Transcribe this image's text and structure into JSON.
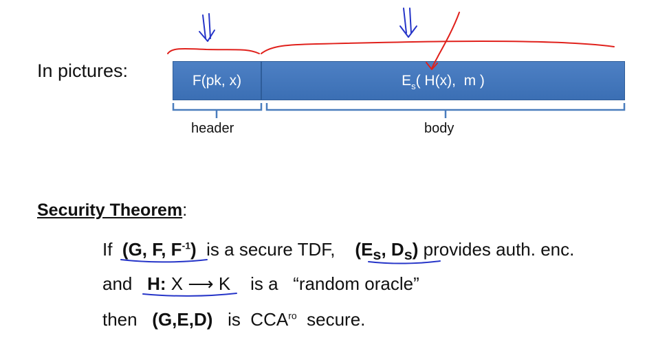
{
  "intro_label": "In pictures:",
  "ciphertext": {
    "header_box": "F(pk, x)",
    "body_box": {
      "prefix": "E",
      "sub": "s",
      "arg1": "( H(x),",
      "arg2": "m )"
    },
    "header_label": "header",
    "body_label": "body"
  },
  "theorem": {
    "title": "Security Theorem",
    "title_suffix": ":",
    "line1": {
      "if": "If",
      "tdf": "(G, F, F",
      "tdf_sup": "-1",
      "tdf_close": ")",
      "tdf_text": "is a secure TDF,",
      "enc_open": "(E",
      "enc_sub1": "s",
      "enc_mid": ", D",
      "enc_sub2": "s",
      "enc_close": ")",
      "enc_text": "provides auth. enc."
    },
    "line2": {
      "and": "and",
      "h": "H:",
      "domain": "X",
      "arrow": "⟶",
      "range": "K",
      "text": "is a",
      "quote": "“random oracle”"
    },
    "line3": {
      "then": "then",
      "scheme": "(G,E,D)",
      "is": "is",
      "cca": "CCA",
      "cca_sup": "ro",
      "secure": "secure."
    }
  },
  "colors": {
    "bar": "#3b6fb4",
    "ink_red": "#e0201b",
    "ink_blue": "#2534c8"
  }
}
